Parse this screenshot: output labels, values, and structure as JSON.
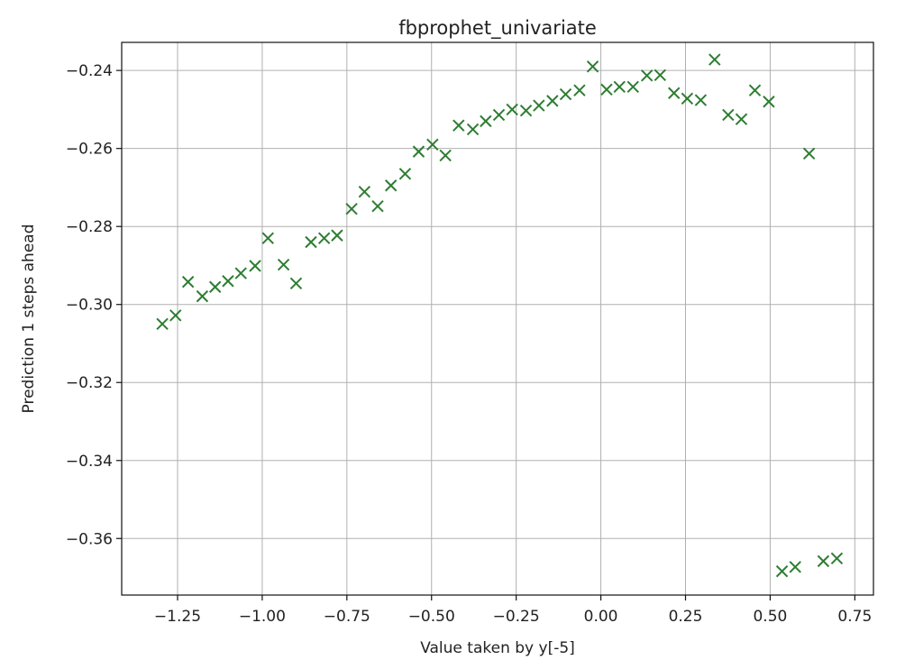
{
  "chart_data": {
    "type": "scatter",
    "title": "fbprophet_univariate",
    "xlabel": "Value taken by y[-5]",
    "ylabel": "Prediction 1 steps ahead",
    "xlim": [
      -1.415,
      0.805
    ],
    "ylim": [
      -0.3745,
      -0.2328
    ],
    "x_ticks": [
      -1.25,
      -1.0,
      -0.75,
      -0.5,
      -0.25,
      0.0,
      0.25,
      0.5,
      0.75
    ],
    "x_tick_labels": [
      "−1.25",
      "−1.00",
      "−0.75",
      "−0.50",
      "−0.25",
      "0.00",
      "0.25",
      "0.50",
      "0.75"
    ],
    "y_ticks": [
      -0.36,
      -0.34,
      -0.32,
      -0.3,
      -0.28,
      -0.26,
      -0.24
    ],
    "y_tick_labels": [
      "−0.36",
      "−0.34",
      "−0.32",
      "−0.30",
      "−0.28",
      "−0.26",
      "−0.24"
    ],
    "grid": true,
    "marker": "x",
    "marker_color": "#2e7d32",
    "series": [
      {
        "points": [
          [
            -1.295,
            -0.305
          ],
          [
            -1.256,
            -0.3028
          ],
          [
            -1.219,
            -0.2942
          ],
          [
            -1.177,
            -0.2979
          ],
          [
            -1.139,
            -0.2955
          ],
          [
            -1.101,
            -0.294
          ],
          [
            -1.063,
            -0.292
          ],
          [
            -1.021,
            -0.2901
          ],
          [
            -0.983,
            -0.283
          ],
          [
            -0.937,
            -0.2898
          ],
          [
            -0.9,
            -0.2946
          ],
          [
            -0.856,
            -0.284
          ],
          [
            -0.817,
            -0.283
          ],
          [
            -0.779,
            -0.2823
          ],
          [
            -0.736,
            -0.2755
          ],
          [
            -0.698,
            -0.2711
          ],
          [
            -0.659,
            -0.2748
          ],
          [
            -0.62,
            -0.2695
          ],
          [
            -0.578,
            -0.2665
          ],
          [
            -0.538,
            -0.2608
          ],
          [
            -0.497,
            -0.259
          ],
          [
            -0.459,
            -0.2618
          ],
          [
            -0.42,
            -0.2541
          ],
          [
            -0.378,
            -0.2551
          ],
          [
            -0.34,
            -0.253
          ],
          [
            -0.301,
            -0.2514
          ],
          [
            -0.262,
            -0.25
          ],
          [
            -0.221,
            -0.2503
          ],
          [
            -0.183,
            -0.249
          ],
          [
            -0.143,
            -0.2478
          ],
          [
            -0.104,
            -0.2461
          ],
          [
            -0.063,
            -0.2451
          ],
          [
            -0.024,
            -0.239
          ],
          [
            0.017,
            -0.2449
          ],
          [
            0.055,
            -0.2442
          ],
          [
            0.095,
            -0.2442
          ],
          [
            0.136,
            -0.2413
          ],
          [
            0.175,
            -0.2412
          ],
          [
            0.216,
            -0.2458
          ],
          [
            0.255,
            -0.2472
          ],
          [
            0.295,
            -0.2476
          ],
          [
            0.336,
            -0.2372
          ],
          [
            0.376,
            -0.2514
          ],
          [
            0.415,
            -0.2525
          ],
          [
            0.455,
            -0.2451
          ],
          [
            0.496,
            -0.248
          ],
          [
            0.535,
            -0.3684
          ],
          [
            0.574,
            -0.3673
          ],
          [
            0.615,
            -0.2613
          ],
          [
            0.657,
            -0.3658
          ],
          [
            0.697,
            -0.3651
          ]
        ]
      }
    ]
  }
}
